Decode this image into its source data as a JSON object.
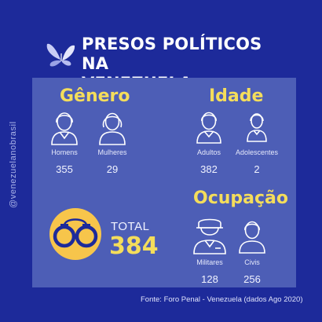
{
  "header": {
    "title_line1": "PRESOS POLÍTICOS NA",
    "title_line2": "VENEZUELA",
    "icon": "butterfly-icon"
  },
  "side_text": "@venezuelanobrasil",
  "genero": {
    "title": "Gênero",
    "items": [
      {
        "label": "Homens",
        "value": "355",
        "icon": "man-icon"
      },
      {
        "label": "Mulheres",
        "value": "29",
        "icon": "woman-icon"
      }
    ]
  },
  "idade": {
    "title": "Idade",
    "items": [
      {
        "label": "Adultos",
        "value": "382",
        "icon": "adult-icon"
      },
      {
        "label": "Adolescentes",
        "value": "2",
        "icon": "teen-icon"
      }
    ]
  },
  "ocupacao": {
    "title": "Ocupação",
    "items": [
      {
        "label": "Militares",
        "value": "128",
        "icon": "military-icon"
      },
      {
        "label": "Civis",
        "value": "256",
        "icon": "civilian-icon"
      }
    ]
  },
  "total": {
    "label": "TOTAL",
    "value": "384",
    "icon": "handcuffs-icon"
  },
  "footer": "Fonte: Foro Penal - Venezuela (dados Ago 2020)",
  "colors": {
    "background": "#1d2a9a",
    "panel": "#4d5eb6",
    "accent_yellow": "#f4dd5b",
    "circle": "#f7c54b"
  }
}
